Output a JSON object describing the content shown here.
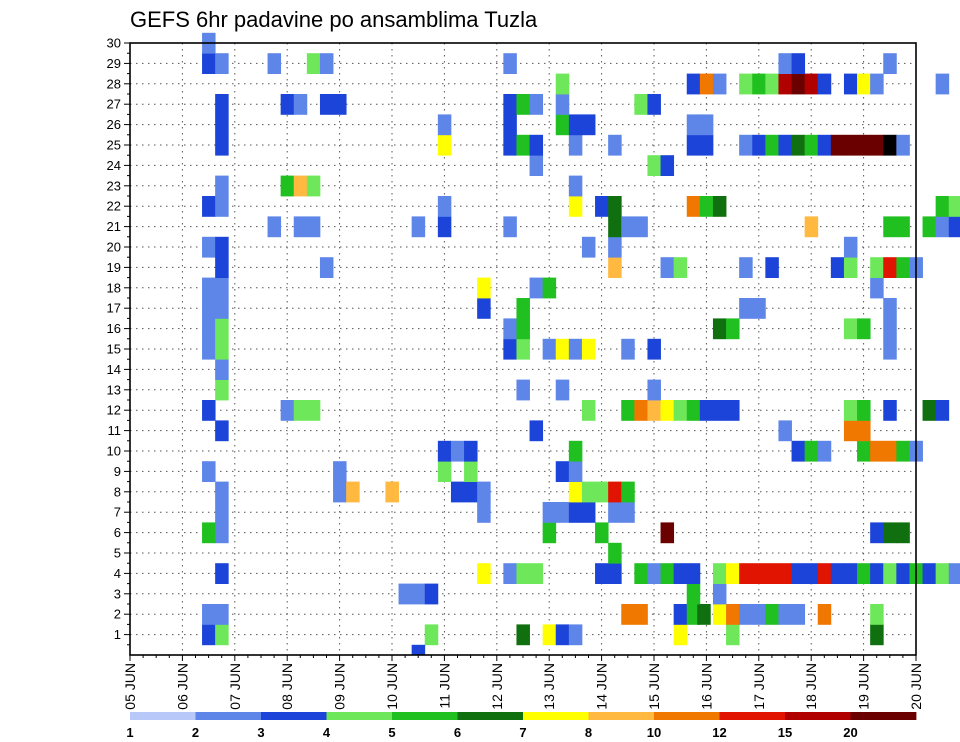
{
  "chart_data": {
    "type": "heatmap",
    "title": "GEFS 6hr padavine po ansamblima Tuzla",
    "x_ticks": [
      "05 JUN",
      "06 JUN",
      "07 JUN",
      "08 JUN",
      "09 JUN",
      "10 JUN",
      "11 JUN",
      "12 JUN",
      "13 JUN",
      "14 JUN",
      "15 JUN",
      "16 JUN",
      "17 JUN",
      "18 JUN",
      "19 JUN",
      "20 JUN"
    ],
    "y_ticks": [
      1,
      2,
      3,
      4,
      5,
      6,
      7,
      8,
      9,
      10,
      11,
      12,
      13,
      14,
      15,
      16,
      17,
      18,
      19,
      20,
      21,
      22,
      23,
      24,
      25,
      26,
      27,
      28,
      29,
      30
    ],
    "xlim": [
      "05 JUN",
      "20 JUN"
    ],
    "ylim": [
      0,
      30
    ],
    "steps_per_day": 4,
    "grid": true,
    "legend": {
      "placement": "bottom",
      "labels": [
        "1",
        "2",
        "3",
        "4",
        "5",
        "6",
        "7",
        "8",
        "10",
        "12",
        "15",
        "20"
      ],
      "colors": [
        "#b8c8f8",
        "#5e86e8",
        "#1c44d8",
        "#6ee85a",
        "#20c020",
        "#107010",
        "#ffff00",
        "#ffb840",
        "#f07800",
        "#e01400",
        "#b00000",
        "#6a0000"
      ]
    },
    "series": [
      {
        "member": 1,
        "cells": [
          [
            1.5,
            2
          ],
          [
            1.75,
            3
          ],
          [
            5.75,
            3
          ],
          [
            7.5,
            5
          ],
          [
            8,
            6
          ],
          [
            8.25,
            2
          ],
          [
            8.5,
            1
          ],
          [
            10.5,
            6
          ],
          [
            11.5,
            3
          ],
          [
            14.25,
            5
          ]
        ]
      },
      {
        "member": 2,
        "cells": [
          [
            1.5,
            1
          ],
          [
            1.75,
            1
          ],
          [
            9.5,
            8
          ],
          [
            9.75,
            8
          ],
          [
            10.5,
            2
          ],
          [
            10.75,
            4
          ],
          [
            10.95,
            5
          ],
          [
            11.25,
            6
          ],
          [
            11.5,
            8
          ],
          [
            11.75,
            1
          ],
          [
            12,
            1
          ],
          [
            12.25,
            4
          ],
          [
            12.5,
            1
          ],
          [
            12.75,
            1
          ],
          [
            13.25,
            8
          ],
          [
            14.25,
            3
          ]
        ]
      },
      {
        "member": 3,
        "cells": [
          [
            5.25,
            1
          ],
          [
            5.5,
            1
          ],
          [
            5.75,
            2
          ],
          [
            10.75,
            4
          ],
          [
            11.25,
            1
          ]
        ]
      },
      {
        "member": 4,
        "cells": [
          [
            1.75,
            2
          ],
          [
            6.75,
            6
          ],
          [
            7.25,
            1
          ],
          [
            7.5,
            3
          ],
          [
            7.75,
            3
          ],
          [
            9,
            2
          ],
          [
            9.25,
            2
          ],
          [
            9.75,
            4
          ],
          [
            10,
            1
          ],
          [
            10.25,
            4
          ],
          [
            10.5,
            2
          ],
          [
            10.75,
            2
          ],
          [
            11.25,
            3
          ],
          [
            11.5,
            6
          ],
          [
            11.75,
            9
          ],
          [
            12,
            9
          ],
          [
            12.25,
            9
          ],
          [
            12.5,
            9
          ],
          [
            12.75,
            2
          ],
          [
            13,
            2
          ],
          [
            13.25,
            9
          ],
          [
            13.5,
            2
          ],
          [
            13.75,
            2
          ],
          [
            14,
            4
          ],
          [
            14.25,
            2
          ],
          [
            14.5,
            3
          ],
          [
            14.75,
            2
          ],
          [
            15,
            4
          ],
          [
            15.25,
            2
          ],
          [
            15.5,
            3
          ],
          [
            15.75,
            1
          ],
          [
            16,
            3
          ]
        ]
      },
      {
        "member": 5,
        "cells": [
          [
            9.25,
            4
          ]
        ]
      },
      {
        "member": 6,
        "cells": [
          [
            1.5,
            4
          ],
          [
            1.75,
            1
          ],
          [
            8,
            4
          ],
          [
            9,
            4
          ],
          [
            10.25,
            11
          ],
          [
            14.25,
            2
          ],
          [
            14.5,
            5
          ],
          [
            14.75,
            5
          ]
        ]
      },
      {
        "member": 7,
        "cells": [
          [
            1.75,
            1
          ],
          [
            6.75,
            1
          ],
          [
            8,
            1
          ],
          [
            8.25,
            1
          ],
          [
            8.5,
            2
          ],
          [
            8.75,
            2
          ],
          [
            9.25,
            1
          ],
          [
            9.5,
            1
          ]
        ]
      },
      {
        "member": 8,
        "cells": [
          [
            1.75,
            1
          ],
          [
            4,
            1
          ],
          [
            4.25,
            7
          ],
          [
            5,
            7
          ],
          [
            6.25,
            2
          ],
          [
            6.5,
            2
          ],
          [
            6.75,
            1
          ],
          [
            8.5,
            6
          ],
          [
            8.75,
            3
          ],
          [
            9,
            3
          ],
          [
            9.25,
            9
          ],
          [
            9.5,
            4
          ]
        ]
      },
      {
        "member": 9,
        "cells": [
          [
            1.5,
            1
          ],
          [
            4,
            1
          ],
          [
            6,
            3
          ],
          [
            6.5,
            3
          ],
          [
            8.25,
            2
          ],
          [
            8.5,
            1
          ]
        ]
      },
      {
        "member": 10,
        "cells": [
          [
            6,
            2
          ],
          [
            6.25,
            1
          ],
          [
            6.5,
            2
          ],
          [
            8.5,
            4
          ],
          [
            12.75,
            2
          ],
          [
            13,
            4
          ],
          [
            13.25,
            1
          ],
          [
            14,
            4
          ],
          [
            14.25,
            8
          ],
          [
            14.5,
            8
          ],
          [
            14.75,
            4
          ],
          [
            15,
            1
          ]
        ]
      },
      {
        "member": 11,
        "cells": [
          [
            1.75,
            2
          ],
          [
            7.75,
            2
          ],
          [
            12.5,
            1
          ],
          [
            13.75,
            8
          ],
          [
            14,
            8
          ]
        ]
      },
      {
        "member": 12,
        "cells": [
          [
            1.5,
            2
          ],
          [
            3,
            1
          ],
          [
            3.25,
            3
          ],
          [
            3.5,
            3
          ],
          [
            8.75,
            3
          ],
          [
            9.5,
            4
          ],
          [
            9.75,
            8
          ],
          [
            10,
            7
          ],
          [
            10.25,
            6
          ],
          [
            10.5,
            3
          ],
          [
            10.75,
            4
          ],
          [
            11,
            2
          ],
          [
            11.25,
            2
          ],
          [
            11.5,
            2
          ],
          [
            13.75,
            3
          ],
          [
            14,
            4
          ],
          [
            14.5,
            2
          ],
          [
            15.25,
            5
          ],
          [
            15.5,
            2
          ]
        ]
      },
      {
        "member": 13,
        "cells": [
          [
            1.75,
            3
          ],
          [
            7.5,
            1
          ],
          [
            8.25,
            1
          ],
          [
            10,
            1
          ]
        ]
      },
      {
        "member": 14,
        "cells": [
          [
            1.75,
            1
          ]
        ]
      },
      {
        "member": 15,
        "cells": [
          [
            1.5,
            1
          ],
          [
            1.75,
            3
          ],
          [
            7.25,
            2
          ],
          [
            7.5,
            3
          ],
          [
            8,
            1
          ],
          [
            8.25,
            6
          ],
          [
            8.5,
            1
          ],
          [
            8.75,
            6
          ],
          [
            9.5,
            1
          ],
          [
            10,
            2
          ],
          [
            14.5,
            1
          ]
        ]
      },
      {
        "member": 16,
        "cells": [
          [
            1.5,
            1
          ],
          [
            1.75,
            3
          ],
          [
            7.25,
            1
          ],
          [
            7.5,
            4
          ],
          [
            11.25,
            5
          ],
          [
            11.5,
            4
          ],
          [
            13.75,
            3
          ],
          [
            14,
            4
          ],
          [
            14.5,
            1
          ]
        ]
      },
      {
        "member": 17,
        "cells": [
          [
            1.5,
            1
          ],
          [
            1.75,
            1
          ],
          [
            6.75,
            2
          ],
          [
            7.5,
            4
          ],
          [
            11.75,
            1
          ],
          [
            12,
            1
          ],
          [
            14.5,
            1
          ]
        ]
      },
      {
        "member": 18,
        "cells": [
          [
            1.5,
            1
          ],
          [
            1.75,
            1
          ],
          [
            6.75,
            6
          ],
          [
            7.75,
            1
          ],
          [
            8,
            4
          ],
          [
            14.25,
            1
          ]
        ]
      },
      {
        "member": 19,
        "cells": [
          [
            1.75,
            2
          ],
          [
            3.75,
            1
          ],
          [
            9.25,
            7
          ],
          [
            10.25,
            1
          ],
          [
            10.5,
            3
          ],
          [
            11.75,
            1
          ],
          [
            12.25,
            2
          ],
          [
            13.5,
            2
          ],
          [
            13.75,
            3
          ],
          [
            14.25,
            3
          ],
          [
            14.5,
            9
          ],
          [
            14.75,
            4
          ],
          [
            15,
            1
          ]
        ]
      },
      {
        "member": 20,
        "cells": [
          [
            1.5,
            1
          ],
          [
            1.75,
            2
          ],
          [
            8.75,
            1
          ],
          [
            9.25,
            1
          ],
          [
            13.75,
            1
          ]
        ]
      },
      {
        "member": 21,
        "cells": [
          [
            2.75,
            1
          ],
          [
            3.25,
            1
          ],
          [
            3.5,
            1
          ],
          [
            5.5,
            1
          ],
          [
            6,
            2
          ],
          [
            7.25,
            1
          ],
          [
            9.25,
            5
          ],
          [
            9.5,
            1
          ],
          [
            9.75,
            1
          ],
          [
            13,
            7
          ],
          [
            14.5,
            4
          ],
          [
            14.75,
            4
          ],
          [
            15.25,
            4
          ],
          [
            15.5,
            1
          ],
          [
            15.75,
            2
          ]
        ]
      },
      {
        "member": 22,
        "cells": [
          [
            1.5,
            2
          ],
          [
            1.75,
            1
          ],
          [
            6,
            1
          ],
          [
            8.5,
            6
          ],
          [
            9,
            2
          ],
          [
            9.25,
            5
          ],
          [
            10.75,
            8
          ],
          [
            11,
            4
          ],
          [
            11.25,
            5
          ],
          [
            15.5,
            4
          ],
          [
            15.75,
            3
          ]
        ]
      },
      {
        "member": 23,
        "cells": [
          [
            1.75,
            1
          ],
          [
            3,
            4
          ],
          [
            3.25,
            7
          ],
          [
            3.5,
            3
          ],
          [
            8.5,
            1
          ]
        ]
      },
      {
        "member": 24,
        "cells": [
          [
            7.75,
            1
          ],
          [
            10,
            3
          ],
          [
            10.25,
            2
          ]
        ]
      },
      {
        "member": 25,
        "cells": [
          [
            1.75,
            2
          ],
          [
            6,
            6
          ],
          [
            7.25,
            2
          ],
          [
            7.5,
            4
          ],
          [
            7.75,
            2
          ],
          [
            8.5,
            1
          ],
          [
            9.25,
            1
          ],
          [
            10.75,
            2
          ],
          [
            11,
            2
          ],
          [
            11.75,
            1
          ],
          [
            12,
            2
          ],
          [
            12.25,
            4
          ],
          [
            12.5,
            2
          ],
          [
            12.75,
            5
          ],
          [
            13,
            4
          ],
          [
            13.25,
            2
          ],
          [
            13.5,
            11
          ],
          [
            13.75,
            11
          ],
          [
            14,
            11
          ],
          [
            14.25,
            11
          ],
          [
            14.5,
            12
          ],
          [
            14.75,
            1
          ]
        ]
      },
      {
        "member": 26,
        "cells": [
          [
            1.75,
            2
          ],
          [
            6,
            1
          ],
          [
            7.25,
            2
          ],
          [
            8.25,
            4
          ],
          [
            8.5,
            2
          ],
          [
            8.75,
            2
          ],
          [
            10.75,
            1
          ],
          [
            11,
            1
          ]
        ]
      },
      {
        "member": 27,
        "cells": [
          [
            1.75,
            2
          ],
          [
            3,
            2
          ],
          [
            3.25,
            1
          ],
          [
            3.75,
            2
          ],
          [
            4,
            2
          ],
          [
            7.25,
            2
          ],
          [
            7.5,
            4
          ],
          [
            7.75,
            1
          ],
          [
            8.25,
            1
          ],
          [
            9.75,
            3
          ],
          [
            10,
            2
          ]
        ]
      },
      {
        "member": 28,
        "cells": [
          [
            8.25,
            3
          ],
          [
            10.75,
            2
          ],
          [
            11,
            8
          ],
          [
            11.25,
            1
          ],
          [
            11.75,
            3
          ],
          [
            12,
            4
          ],
          [
            12.25,
            3
          ],
          [
            12.5,
            10
          ],
          [
            12.75,
            11
          ],
          [
            13,
            10
          ],
          [
            13.25,
            2
          ],
          [
            13.75,
            2
          ],
          [
            14,
            6
          ],
          [
            14.25,
            1
          ],
          [
            15.5,
            1
          ]
        ]
      },
      {
        "member": 29,
        "cells": [
          [
            1.5,
            2
          ],
          [
            1.75,
            1
          ],
          [
            2.75,
            1
          ],
          [
            3.5,
            3
          ],
          [
            3.75,
            1
          ],
          [
            7.25,
            1
          ],
          [
            12.5,
            1
          ],
          [
            12.75,
            2
          ],
          [
            14.5,
            1
          ]
        ]
      },
      {
        "member": 30,
        "cells": [
          [
            1.5,
            1
          ]
        ]
      }
    ],
    "extra_marks": [
      [
        5.5,
        0,
        3
      ]
    ]
  }
}
